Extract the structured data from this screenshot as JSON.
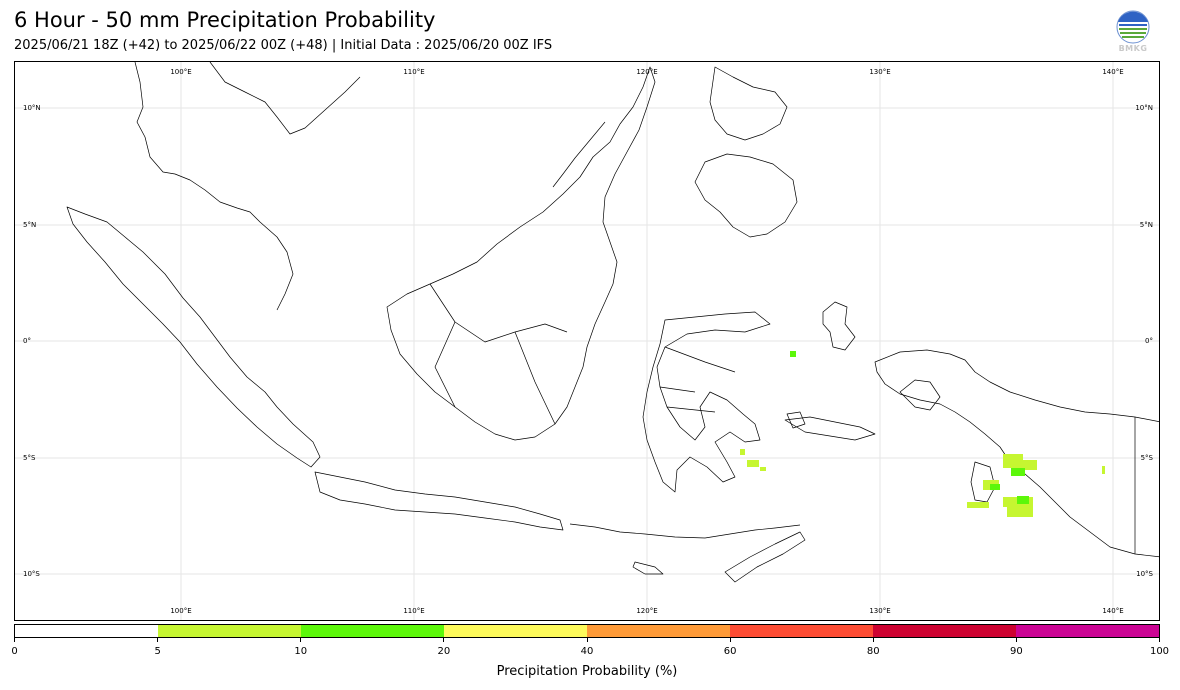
{
  "header": {
    "title": "6 Hour - 50 mm Precipitation Probability",
    "subtitle": "2025/06/21 18Z (+42) to 2025/06/22 00Z (+48) | Initial Data : 2025/06/20 00Z IFS",
    "logo_text": "BMKG"
  },
  "map": {
    "lon_labels": [
      "100°E",
      "110°E",
      "120°E",
      "130°E",
      "140°E"
    ],
    "lat_labels": [
      "10°N",
      "5°N",
      "0°",
      "5°S",
      "10°S"
    ],
    "gridline_color": "#e6e6e6",
    "coastline_color": "#000000"
  },
  "colorbar": {
    "title": "Precipitation Probability (%)",
    "tick_labels": [
      "0",
      "5",
      "10",
      "20",
      "40",
      "60",
      "80",
      "90",
      "100"
    ],
    "colors": [
      "#ffffff",
      "#c6f631",
      "#5cf70a",
      "#fdfa5b",
      "#fe9a37",
      "#fd4c33",
      "#cd0231",
      "#cb0494"
    ]
  }
}
